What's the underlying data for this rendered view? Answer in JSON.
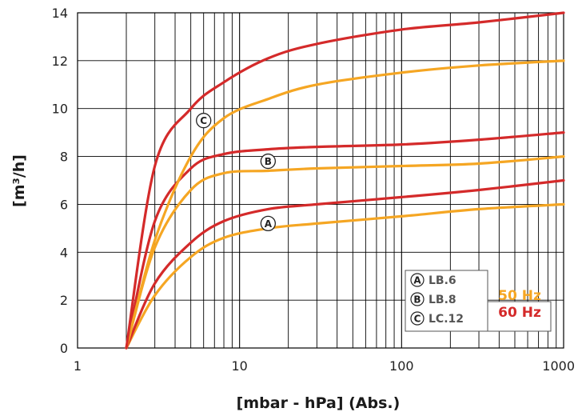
{
  "chart_data": {
    "type": "line",
    "title": "",
    "xlabel": "[mbar - hPa] (Abs.)",
    "ylabel": "[m³/h]",
    "x_scale": "log",
    "xlim": [
      1,
      1000
    ],
    "ylim": [
      0,
      14
    ],
    "x_ticks": [
      1,
      10,
      100,
      1000
    ],
    "x_tick_labels": [
      "1",
      "10",
      "100",
      "1000"
    ],
    "y_ticks": [
      0,
      2,
      4,
      6,
      8,
      10,
      12,
      14
    ],
    "y_tick_labels": [
      "0",
      "2",
      "4",
      "6",
      "8",
      "10",
      "12",
      "14"
    ],
    "grid": true,
    "colors": {
      "50hz": "#F5A623",
      "60hz": "#D42A2A"
    },
    "series": [
      {
        "model": "A",
        "freq": "50 Hz",
        "x": [
          2,
          3,
          5,
          8,
          15,
          30,
          100,
          300,
          1000
        ],
        "y": [
          0,
          2.2,
          3.8,
          4.6,
          5.0,
          5.2,
          5.5,
          5.8,
          6.0
        ]
      },
      {
        "model": "A",
        "freq": "60 Hz",
        "x": [
          2,
          3,
          5,
          8,
          15,
          30,
          100,
          300,
          1000
        ],
        "y": [
          0,
          2.7,
          4.4,
          5.3,
          5.8,
          6.0,
          6.3,
          6.6,
          7.0
        ]
      },
      {
        "model": "B",
        "freq": "50 Hz",
        "x": [
          2,
          3,
          5,
          8,
          15,
          30,
          100,
          300,
          1000
        ],
        "y": [
          0,
          4.2,
          6.6,
          7.3,
          7.4,
          7.5,
          7.6,
          7.7,
          8.0
        ]
      },
      {
        "model": "B",
        "freq": "60 Hz",
        "x": [
          2,
          3,
          5,
          8,
          15,
          30,
          100,
          300,
          1000
        ],
        "y": [
          0,
          5.3,
          7.5,
          8.1,
          8.3,
          8.4,
          8.5,
          8.7,
          9.0
        ]
      },
      {
        "model": "C",
        "freq": "50 Hz",
        "x": [
          2,
          3,
          5,
          8,
          15,
          30,
          100,
          300,
          1000
        ],
        "y": [
          0,
          4.5,
          8.0,
          9.6,
          10.4,
          11.0,
          11.5,
          11.8,
          12.0
        ]
      },
      {
        "model": "C",
        "freq": "60 Hz",
        "x": [
          2,
          3,
          5,
          8,
          15,
          30,
          100,
          300,
          1000
        ],
        "y": [
          0,
          7.6,
          10.0,
          11.1,
          12.1,
          12.7,
          13.3,
          13.6,
          14.0
        ]
      }
    ],
    "curve_labels": [
      {
        "letter": "A",
        "x": 15,
        "y": 5.2
      },
      {
        "letter": "B",
        "x": 15,
        "y": 7.8
      },
      {
        "letter": "C",
        "x": 6,
        "y": 9.5
      }
    ],
    "legend": {
      "placement": "bottom-right",
      "models": [
        {
          "letter": "A",
          "label": "LB.6"
        },
        {
          "letter": "B",
          "label": "LB.8"
        },
        {
          "letter": "C",
          "label": "LC.12"
        }
      ],
      "frequencies": [
        {
          "label": "50 Hz",
          "color": "#F5A623"
        },
        {
          "label": "60 Hz",
          "color": "#D42A2A"
        }
      ]
    }
  }
}
